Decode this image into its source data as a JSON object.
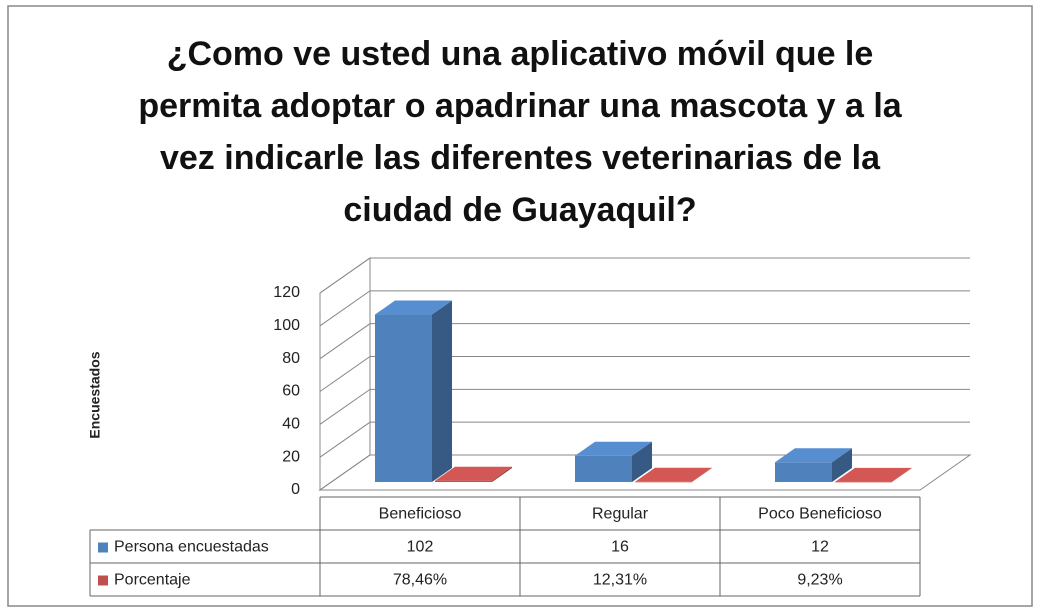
{
  "chart_data": {
    "type": "bar3d",
    "title": "¿Como ve usted una aplicativo móvil que le permita adoptar o apadrinar una mascota y a la vez indicarle las diferentes veterinarias de la ciudad de Guayaquil?",
    "y_label": "Encuestados",
    "categories": [
      "Beneficioso",
      "Regular",
      "Poco Beneficioso"
    ],
    "series": [
      {
        "name": "Persona encuestadas",
        "color": "#4f81bd",
        "values": [
          102,
          16,
          12
        ]
      },
      {
        "name": "Porcentaje",
        "color": "#c0504d",
        "values": [
          0.7846,
          0.1231,
          0.0923
        ],
        "value_labels": [
          "78,46%",
          "12,31%",
          "9,23%"
        ]
      }
    ],
    "ylim": [
      0,
      120
    ],
    "yticks": [
      0,
      20,
      40,
      60,
      80,
      100,
      120
    ],
    "grid": true,
    "data_table": true
  }
}
